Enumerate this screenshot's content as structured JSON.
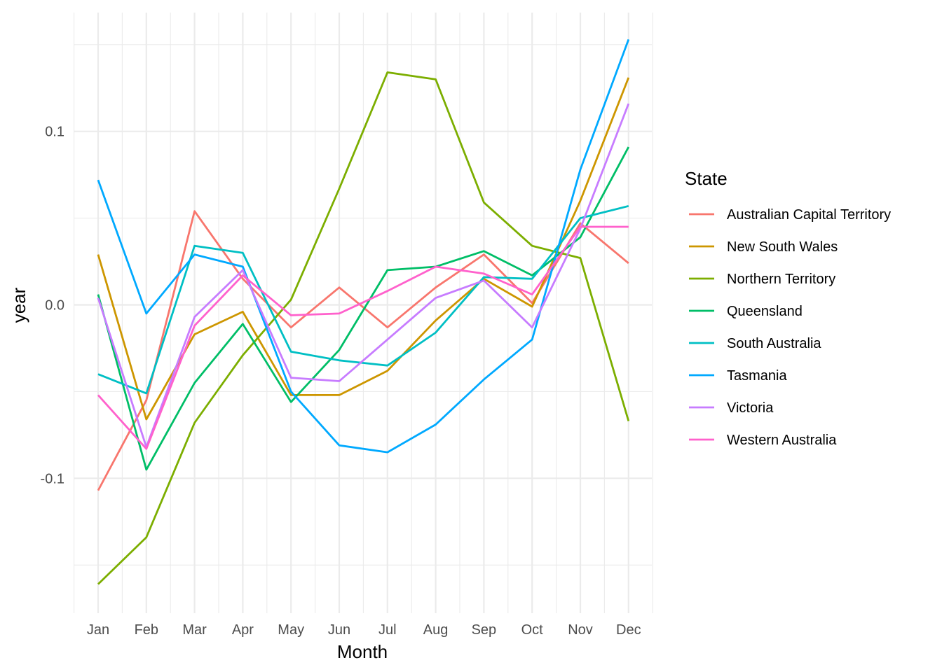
{
  "chart_data": {
    "type": "line",
    "xlabel": "Month",
    "ylabel": "year",
    "categories": [
      "Jan",
      "Feb",
      "Mar",
      "Apr",
      "May",
      "Jun",
      "Jul",
      "Aug",
      "Sep",
      "Oct",
      "Nov",
      "Dec"
    ],
    "yticks": [
      {
        "value": -0.1,
        "label": "-0.1"
      },
      {
        "value": 0.0,
        "label": "0.0"
      },
      {
        "value": 0.1,
        "label": "0.1"
      }
    ],
    "ylim": [
      -0.176,
      0.154
    ],
    "grid": true,
    "legend": {
      "title": "State",
      "position": "right"
    },
    "series": [
      {
        "name": "Australian Capital Territory",
        "color": "#F8766D",
        "values": [
          -0.107,
          -0.055,
          0.054,
          0.015,
          -0.013,
          0.01,
          -0.013,
          0.01,
          0.029,
          0.001,
          0.047,
          0.024
        ]
      },
      {
        "name": "New South Wales",
        "color": "#CD9600",
        "values": [
          0.029,
          -0.066,
          -0.017,
          -0.004,
          -0.052,
          -0.052,
          -0.038,
          -0.009,
          0.015,
          -0.001,
          0.06,
          0.131
        ]
      },
      {
        "name": "Northern Territory",
        "color": "#7CAE00",
        "values": [
          -0.161,
          -0.134,
          -0.068,
          -0.029,
          0.003,
          0.067,
          0.134,
          0.13,
          0.059,
          0.034,
          0.027,
          -0.067
        ]
      },
      {
        "name": "Queensland",
        "color": "#00BE67",
        "values": [
          0.006,
          -0.095,
          -0.045,
          -0.011,
          -0.056,
          -0.026,
          0.02,
          0.022,
          0.031,
          0.017,
          0.039,
          0.091
        ]
      },
      {
        "name": "South Australia",
        "color": "#00BFC4",
        "values": [
          -0.04,
          -0.051,
          0.034,
          0.03,
          -0.027,
          -0.032,
          -0.035,
          -0.016,
          0.016,
          0.015,
          0.05,
          0.057
        ]
      },
      {
        "name": "Tasmania",
        "color": "#00A9FF",
        "values": [
          0.072,
          -0.005,
          0.029,
          0.022,
          -0.05,
          -0.081,
          -0.085,
          -0.069,
          -0.043,
          -0.02,
          0.078,
          0.153
        ]
      },
      {
        "name": "Victoria",
        "color": "#C77CFF",
        "values": [
          0.004,
          -0.082,
          -0.007,
          0.02,
          -0.042,
          -0.044,
          -0.02,
          0.004,
          0.014,
          -0.013,
          0.044,
          0.116
        ]
      },
      {
        "name": "Western Australia",
        "color": "#FF61CC",
        "values": [
          -0.052,
          -0.083,
          -0.012,
          0.017,
          -0.006,
          -0.005,
          0.008,
          0.022,
          0.018,
          0.006,
          0.045,
          0.045
        ]
      }
    ]
  }
}
